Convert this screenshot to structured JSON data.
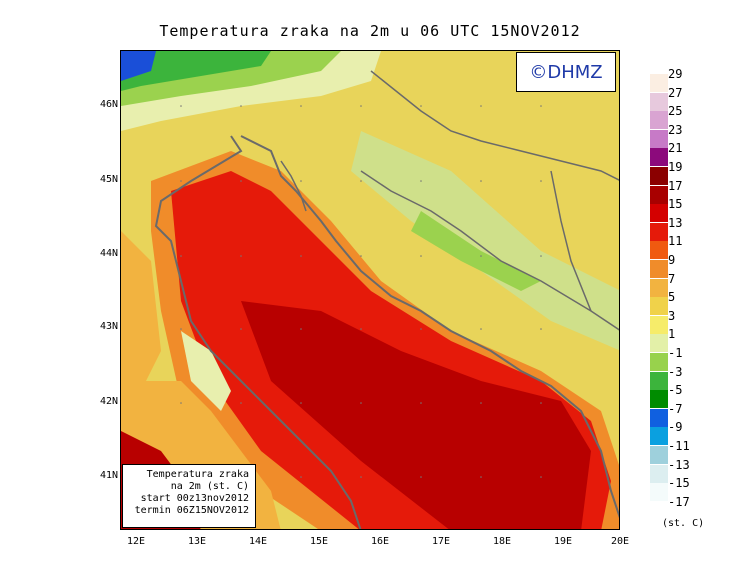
{
  "title": "Temperatura zraka na 2m u 06 UTC 15NOV2012",
  "brand": "©DHMZ",
  "info_box": {
    "line1": "Temperatura zraka",
    "line2": "na 2m (st. C)",
    "line3": "start 00z13nov2012",
    "line4": "termin 06Z15NOV2012"
  },
  "lat_ticks": [
    "46N",
    "45N",
    "44N",
    "43N",
    "42N",
    "41N"
  ],
  "lon_ticks": [
    "12E",
    "13E",
    "14E",
    "15E",
    "16E",
    "17E",
    "18E",
    "19E",
    "20E"
  ],
  "legend": {
    "unit": "(st. C)",
    "labels": [
      "29",
      "27",
      "25",
      "23",
      "21",
      "19",
      "17",
      "15",
      "13",
      "11",
      "9",
      "7",
      "5",
      "3",
      "1",
      "-1",
      "-3",
      "-5",
      "-7",
      "-9",
      "-11",
      "-13",
      "-15",
      "-17"
    ],
    "colors": [
      "#fbeee2",
      "#e7c9dd",
      "#d9a4d2",
      "#c77ac7",
      "#8c0a7c",
      "#8b0000",
      "#a80000",
      "#d40000",
      "#e51a0a",
      "#f05a10",
      "#f08c2a",
      "#f2b340",
      "#f0d24a",
      "#f6ec6a",
      "#e3f0a8",
      "#98d24c",
      "#3cb43c",
      "#008c00",
      "#1060e0",
      "#0aa0e0",
      "#9ed0dc",
      "#dceef0",
      "#f4fbfb"
    ]
  },
  "colors": {
    "coast": "#6a6a6a",
    "brand_text": "#1f3aa8"
  }
}
